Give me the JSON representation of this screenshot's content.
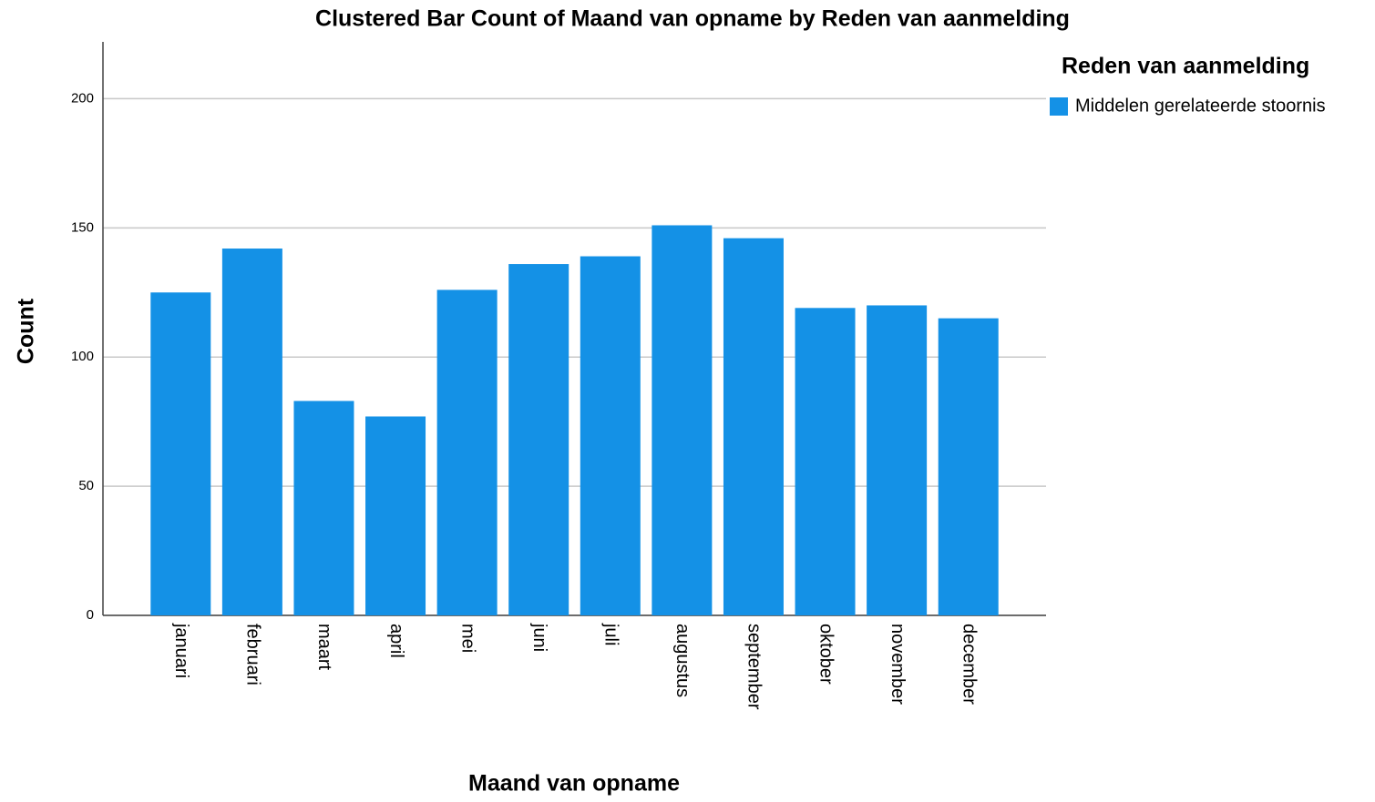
{
  "chart_data": {
    "type": "bar",
    "title": "Clustered Bar Count of Maand van opname by Reden van aanmelding",
    "x_label": "Maand van opname",
    "y_label": "Count",
    "legend_title": "Reden van aanmelding",
    "categories": [
      "januari",
      "februari",
      "maart",
      "april",
      "mei",
      "juni",
      "juli",
      "augustus",
      "september",
      "oktober",
      "november",
      "december"
    ],
    "series": [
      {
        "name": "Middelen gerelateerde stoornis",
        "color": "#1491e6",
        "values": [
          125,
          142,
          83,
          77,
          126,
          136,
          139,
          151,
          146,
          119,
          120,
          115
        ]
      }
    ],
    "ylim": [
      0,
      222
    ],
    "yticks": [
      0,
      50,
      100,
      150,
      200
    ],
    "grid": true,
    "legend": "right"
  }
}
